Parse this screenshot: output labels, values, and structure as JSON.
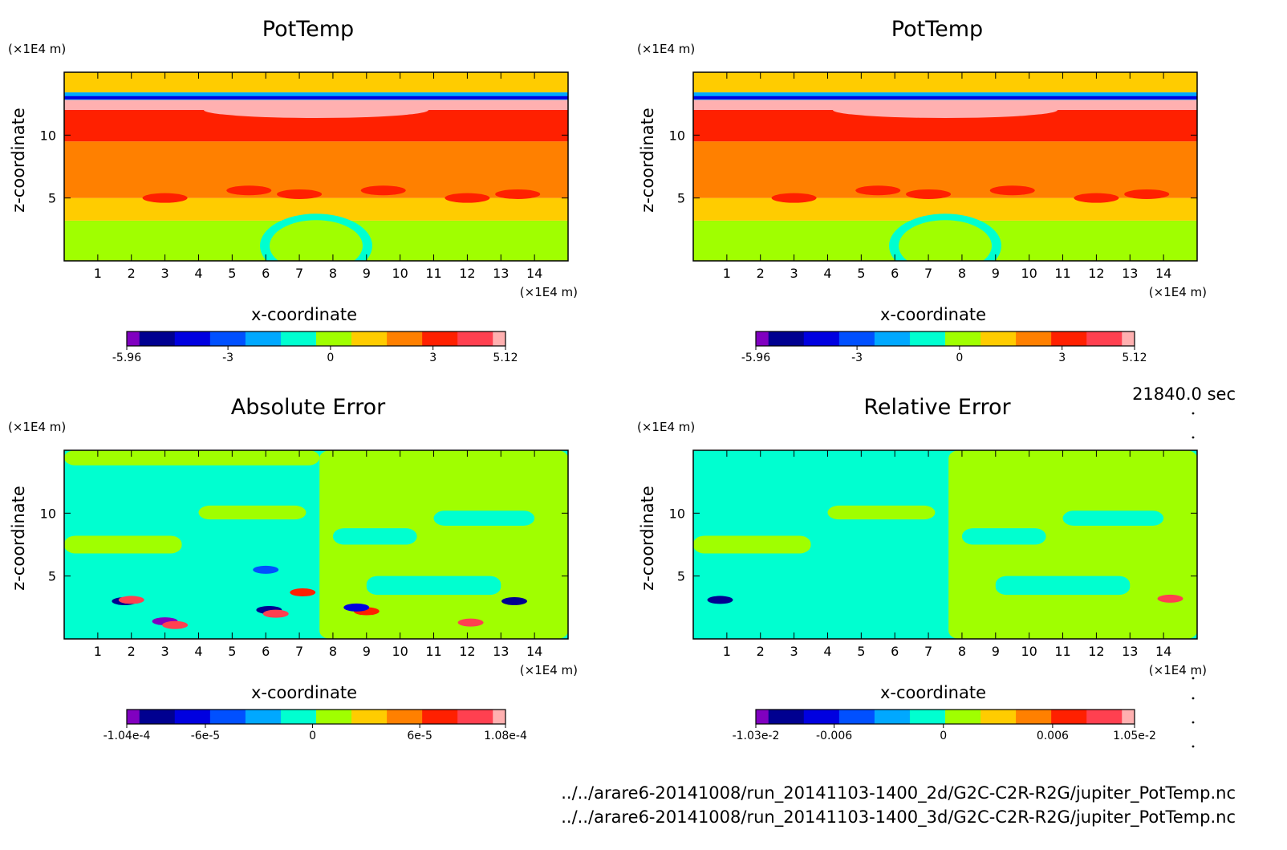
{
  "chart_data": [
    {
      "type": "heatmap",
      "title": "PotTemp",
      "xlabel": "x-coordinate",
      "ylabel": "z-coordinate",
      "x_unit": "(×1E4 m)",
      "z_unit": "(×1E4 m)",
      "xlim": [
        0,
        15
      ],
      "ylim": [
        0,
        15
      ],
      "x_ticks": [
        "1",
        "2",
        "3",
        "4",
        "5",
        "6",
        "7",
        "8",
        "9",
        "10",
        "11",
        "12",
        "13",
        "14"
      ],
      "y_ticks": [
        "5",
        "10"
      ],
      "colorbar": {
        "range": [
          -5.96,
          5.12
        ],
        "labels": [
          {
            "text": "-5.96",
            "value": -5.96
          },
          {
            "text": "-3",
            "value": -3
          },
          {
            "text": "0",
            "value": 0
          },
          {
            "text": "3",
            "value": 3
          },
          {
            "text": "5.12",
            "value": 5.12
          }
        ]
      },
      "field": [
        {
          "z": [
            0,
            3.2
          ],
          "value": 0.0
        },
        {
          "z": [
            3.2,
            5.0
          ],
          "value": 0.6
        },
        {
          "z": [
            5.0,
            9.5
          ],
          "value": 1.8
        },
        {
          "z": [
            9.5,
            12.0
          ],
          "value": 2.8
        },
        {
          "z": [
            12.0,
            12.8
          ],
          "value": 4.6
        },
        {
          "z": [
            12.8,
            13.4
          ],
          "value": -2.2
        },
        {
          "z": [
            13.4,
            15
          ],
          "value": 0.6
        }
      ]
    },
    {
      "type": "heatmap",
      "title": "PotTemp",
      "xlabel": "x-coordinate",
      "ylabel": "z-coordinate",
      "x_unit": "(×1E4 m)",
      "z_unit": "(×1E4 m)",
      "xlim": [
        0,
        15
      ],
      "ylim": [
        0,
        15
      ],
      "x_ticks": [
        "1",
        "2",
        "3",
        "4",
        "5",
        "6",
        "7",
        "8",
        "9",
        "10",
        "11",
        "12",
        "13",
        "14"
      ],
      "y_ticks": [
        "5",
        "10"
      ],
      "colorbar": {
        "range": [
          -5.96,
          5.12
        ],
        "labels": [
          {
            "text": "-5.96",
            "value": -5.96
          },
          {
            "text": "-3",
            "value": -3
          },
          {
            "text": "0",
            "value": 0
          },
          {
            "text": "3",
            "value": 3
          },
          {
            "text": "5.12",
            "value": 5.12
          }
        ]
      },
      "field": [
        {
          "z": [
            0,
            3.2
          ],
          "value": 0.0
        },
        {
          "z": [
            3.2,
            5.0
          ],
          "value": 0.6
        },
        {
          "z": [
            5.0,
            9.5
          ],
          "value": 1.8
        },
        {
          "z": [
            9.5,
            12.0
          ],
          "value": 2.8
        },
        {
          "z": [
            12.0,
            12.8
          ],
          "value": 4.6
        },
        {
          "z": [
            12.8,
            13.4
          ],
          "value": -2.2
        },
        {
          "z": [
            13.4,
            15
          ],
          "value": 0.6
        }
      ]
    },
    {
      "type": "heatmap",
      "title": "Absolute Error",
      "xlabel": "x-coordinate",
      "ylabel": "z-coordinate",
      "x_unit": "(×1E4 m)",
      "z_unit": "(×1E4 m)",
      "xlim": [
        0,
        15
      ],
      "ylim": [
        0,
        15
      ],
      "x_ticks": [
        "1",
        "2",
        "3",
        "4",
        "5",
        "6",
        "7",
        "8",
        "9",
        "10",
        "11",
        "12",
        "13",
        "14"
      ],
      "y_ticks": [
        "5",
        "10"
      ],
      "colorbar": {
        "range": [
          -0.000104,
          0.000108
        ],
        "labels": [
          {
            "text": "-1.04e-4",
            "value": -0.000104
          },
          {
            "text": "-6e-5",
            "value": -6e-05
          },
          {
            "text": "0",
            "value": 0
          },
          {
            "text": "6e-5",
            "value": 6e-05
          },
          {
            "text": "1.08e-4",
            "value": 0.000108
          }
        ]
      },
      "field_background": 0.0,
      "field": [
        {
          "x": [
            7.6,
            15
          ],
          "z": [
            0,
            15
          ],
          "value": 1.5e-05
        },
        {
          "x": [
            0,
            7.6
          ],
          "z": [
            13.8,
            15
          ],
          "value": 1.5e-05
        },
        {
          "x": [
            0,
            3.5
          ],
          "z": [
            6.8,
            8.2
          ],
          "value": 1.5e-05
        },
        {
          "x": [
            4.0,
            7.2
          ],
          "z": [
            9.5,
            10.6
          ],
          "value": 1.5e-05
        },
        {
          "x": [
            8.0,
            10.5
          ],
          "z": [
            7.5,
            8.8
          ],
          "value": 0.0
        },
        {
          "x": [
            11.0,
            14.0
          ],
          "z": [
            9.0,
            10.2
          ],
          "value": 0.0
        },
        {
          "x": [
            9.0,
            13.0
          ],
          "z": [
            3.5,
            5.0
          ],
          "value": 0.0
        }
      ],
      "spots": [
        {
          "x": 1.8,
          "z": 3.0,
          "value": -8e-05
        },
        {
          "x": 2.0,
          "z": 3.1,
          "value": 8e-05
        },
        {
          "x": 3.0,
          "z": 1.4,
          "value": -0.0001
        },
        {
          "x": 3.3,
          "z": 1.1,
          "value": 8e-05
        },
        {
          "x": 6.1,
          "z": 2.3,
          "value": -8e-05
        },
        {
          "x": 6.3,
          "z": 2.0,
          "value": 9e-05
        },
        {
          "x": 9.0,
          "z": 2.2,
          "value": 7e-05
        },
        {
          "x": 8.7,
          "z": 2.5,
          "value": -6e-05
        },
        {
          "x": 12.1,
          "z": 1.3,
          "value": 8e-05
        },
        {
          "x": 13.4,
          "z": 3.0,
          "value": -8e-05
        },
        {
          "x": 7.1,
          "z": 3.7,
          "value": 6e-05
        },
        {
          "x": 6.0,
          "z": 5.5,
          "value": -5e-05
        }
      ]
    },
    {
      "type": "heatmap",
      "title": "Relative Error",
      "xlabel": "x-coordinate",
      "ylabel": "z-coordinate",
      "x_unit": "(×1E4 m)",
      "z_unit": "(×1E4 m)",
      "xlim": [
        0,
        15
      ],
      "ylim": [
        0,
        15
      ],
      "x_ticks": [
        "1",
        "2",
        "3",
        "4",
        "5",
        "6",
        "7",
        "8",
        "9",
        "10",
        "11",
        "12",
        "13",
        "14"
      ],
      "y_ticks": [
        "5",
        "10"
      ],
      "colorbar": {
        "range": [
          -0.0103,
          0.0105
        ],
        "labels": [
          {
            "text": "-1.03e-2",
            "value": -0.0103
          },
          {
            "text": "-0.006",
            "value": -0.006
          },
          {
            "text": "0",
            "value": 0
          },
          {
            "text": "0.006",
            "value": 0.006
          },
          {
            "text": "1.05e-2",
            "value": 0.0105
          }
        ]
      },
      "field_background": 0.0,
      "field": [
        {
          "x": [
            7.6,
            15
          ],
          "z": [
            0,
            15
          ],
          "value": 0.0015
        },
        {
          "x": [
            0,
            7.6
          ],
          "z": [
            13.8,
            15
          ],
          "value": 0.0
        },
        {
          "x": [
            0,
            3.5
          ],
          "z": [
            6.8,
            8.2
          ],
          "value": 0.0015
        },
        {
          "x": [
            4.0,
            7.2
          ],
          "z": [
            9.5,
            10.6
          ],
          "value": 0.0015
        },
        {
          "x": [
            8.0,
            10.5
          ],
          "z": [
            7.5,
            8.8
          ],
          "value": 0.0
        },
        {
          "x": [
            11.0,
            14.0
          ],
          "z": [
            9.0,
            10.2
          ],
          "value": 0.0
        },
        {
          "x": [
            9.0,
            13.0
          ],
          "z": [
            3.5,
            5.0
          ],
          "value": 0.0
        }
      ],
      "spots": [
        {
          "x": 0.8,
          "z": 3.1,
          "value": -0.008
        },
        {
          "x": 14.2,
          "z": 3.2,
          "value": 0.008
        }
      ]
    }
  ],
  "colorbar_colors": [
    "#8000c0",
    "#000090",
    "#0000e0",
    "#0050ff",
    "#00a8ff",
    "#00ffd0",
    "#a0ff00",
    "#ffcc00",
    "#ff8000",
    "#ff2000",
    "#ff4050",
    "#ffb0b0"
  ],
  "info": {
    "time": "21840.0 sec",
    "file1": "../../arare6-20141008/run_20141103-1400_2d/G2C-C2R-R2G/jupiter_PotTemp.nc",
    "file2": "../../arare6-20141008/run_20141103-1400_3d/G2C-C2R-R2G/jupiter_PotTemp.nc"
  }
}
